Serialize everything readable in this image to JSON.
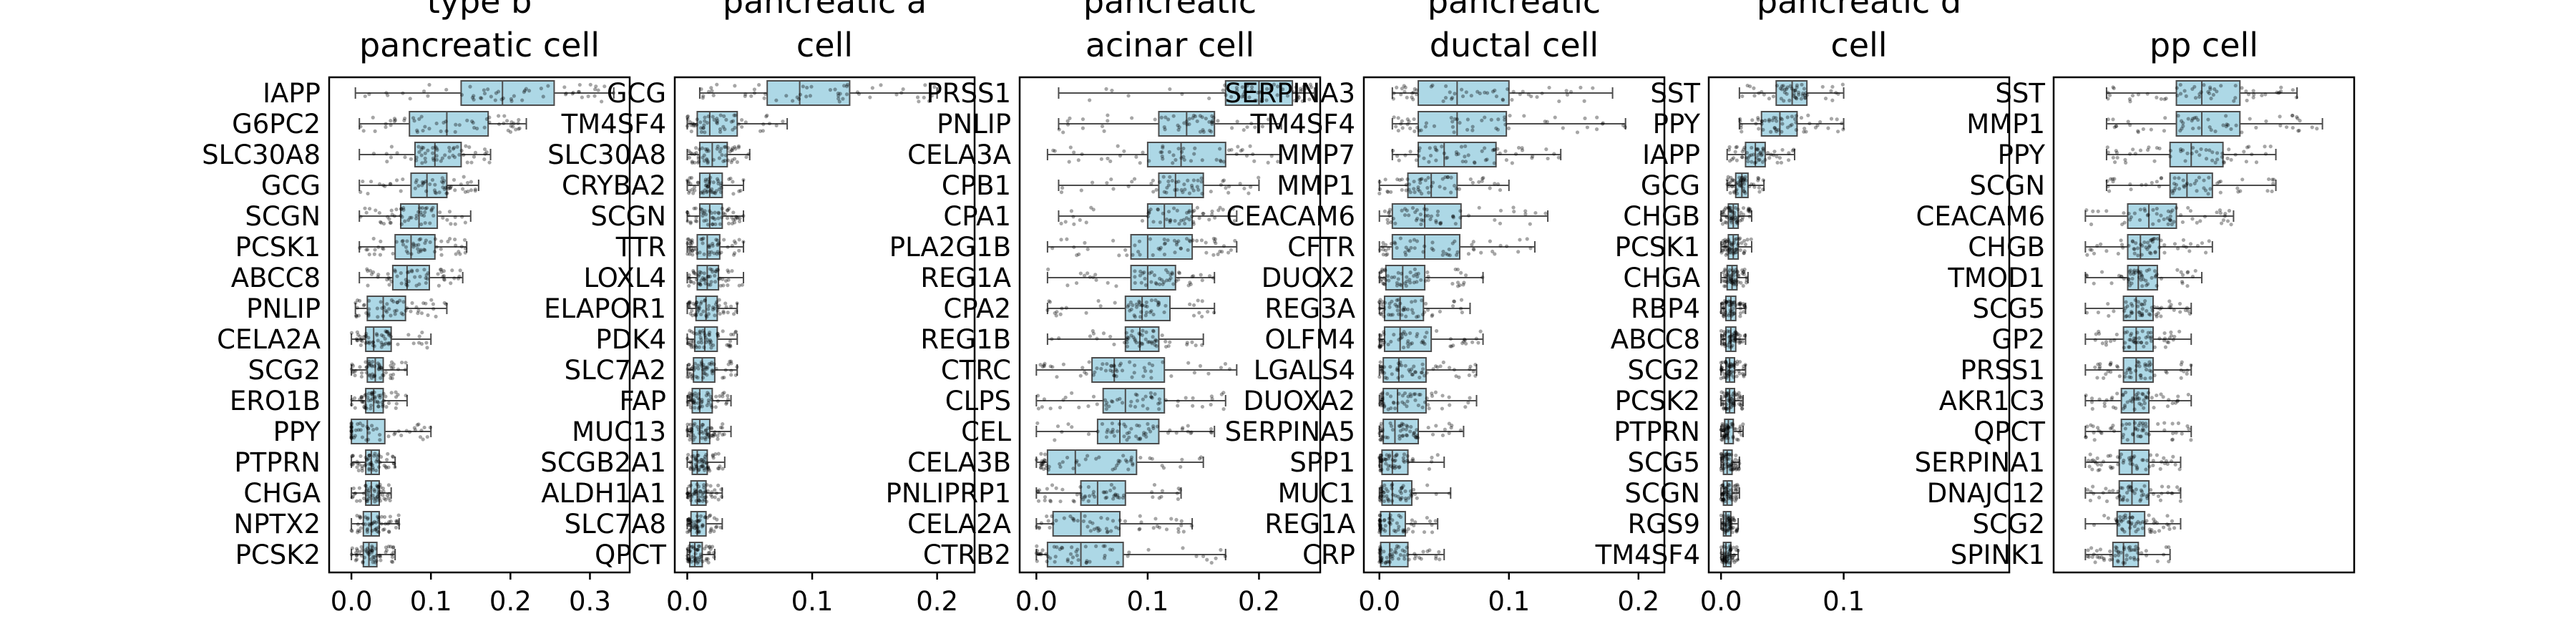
{
  "chart_data": [
    {
      "type": "box",
      "title": "type b\npancreatic cell",
      "xlim": [
        -0.028,
        0.35
      ],
      "xticks": [
        "0.0",
        "0.1",
        "0.2",
        "0.3"
      ],
      "xtick_values": [
        0.0,
        0.1,
        0.2,
        0.3
      ],
      "xtick_labels_visible": true,
      "grid": false,
      "genes": [
        "IAPP",
        "G6PC2",
        "SLC30A8",
        "GCG",
        "SCGN",
        "PCSK1",
        "ABCC8",
        "PNLIP",
        "CELA2A",
        "SCG2",
        "ERO1B",
        "PPY",
        "PTPRN",
        "CHGA",
        "NPTX2",
        "PCSK2"
      ],
      "boxes": [
        [
          0.005,
          0.138,
          0.19,
          0.255,
          0.33
        ],
        [
          0.01,
          0.073,
          0.12,
          0.172,
          0.22
        ],
        [
          0.01,
          0.08,
          0.105,
          0.138,
          0.175
        ],
        [
          0.01,
          0.075,
          0.095,
          0.12,
          0.16
        ],
        [
          0.01,
          0.062,
          0.085,
          0.108,
          0.15
        ],
        [
          0.01,
          0.055,
          0.075,
          0.105,
          0.145
        ],
        [
          0.01,
          0.052,
          0.07,
          0.098,
          0.14
        ],
        [
          0.005,
          0.02,
          0.04,
          0.068,
          0.12
        ],
        [
          0.0,
          0.018,
          0.028,
          0.05,
          0.1
        ],
        [
          0.0,
          0.02,
          0.03,
          0.04,
          0.07
        ],
        [
          0.0,
          0.018,
          0.028,
          0.04,
          0.07
        ],
        [
          0.0,
          0.0,
          0.02,
          0.042,
          0.1
        ],
        [
          0.0,
          0.018,
          0.025,
          0.035,
          0.055
        ],
        [
          0.0,
          0.018,
          0.025,
          0.035,
          0.05
        ],
        [
          0.0,
          0.015,
          0.025,
          0.035,
          0.06
        ],
        [
          0.0,
          0.015,
          0.022,
          0.032,
          0.055
        ]
      ]
    },
    {
      "type": "box",
      "title": "pancreatic a\ncell",
      "xlim": [
        -0.01,
        0.23
      ],
      "xticks": [
        "0.0",
        "0.1",
        "0.2"
      ],
      "xtick_values": [
        0.0,
        0.1,
        0.2
      ],
      "xtick_labels_visible": true,
      "grid": false,
      "genes": [
        "GCG",
        "TM4SF4",
        "SLC30A8",
        "CRYBA2",
        "SCGN",
        "TTR",
        "LOXL4",
        "ELAPOR1",
        "PDK4",
        "SLC7A2",
        "FAP",
        "MUC13",
        "SCGB2A1",
        "ALDH1A1",
        "SLC7A8",
        "QPCT"
      ],
      "boxes": [
        [
          0.01,
          0.064,
          0.09,
          0.13,
          0.2
        ],
        [
          0.0,
          0.008,
          0.018,
          0.04,
          0.08
        ],
        [
          0.0,
          0.01,
          0.02,
          0.032,
          0.05
        ],
        [
          0.0,
          0.01,
          0.018,
          0.028,
          0.045
        ],
        [
          0.0,
          0.01,
          0.018,
          0.028,
          0.045
        ],
        [
          0.0,
          0.008,
          0.016,
          0.026,
          0.045
        ],
        [
          0.0,
          0.008,
          0.016,
          0.025,
          0.045
        ],
        [
          0.0,
          0.007,
          0.015,
          0.024,
          0.04
        ],
        [
          0.0,
          0.006,
          0.014,
          0.024,
          0.04
        ],
        [
          0.0,
          0.005,
          0.012,
          0.022,
          0.04
        ],
        [
          0.0,
          0.004,
          0.01,
          0.02,
          0.035
        ],
        [
          0.0,
          0.004,
          0.01,
          0.018,
          0.035
        ],
        [
          0.0,
          0.004,
          0.008,
          0.016,
          0.03
        ],
        [
          0.0,
          0.003,
          0.008,
          0.015,
          0.028
        ],
        [
          0.0,
          0.003,
          0.008,
          0.015,
          0.028
        ],
        [
          0.0,
          0.002,
          0.006,
          0.012,
          0.022
        ]
      ]
    },
    {
      "type": "box",
      "title": "pancreatic\nacinar cell",
      "xlim": [
        -0.015,
        0.255
      ],
      "xticks": [
        "0.0",
        "0.1",
        "0.2"
      ],
      "xtick_values": [
        0.0,
        0.1,
        0.2
      ],
      "xtick_labels_visible": true,
      "grid": false,
      "genes": [
        "PRSS1",
        "PNLIP",
        "CELA3A",
        "CPB1",
        "CPA1",
        "PLA2G1B",
        "REG1A",
        "CPA2",
        "REG1B",
        "CTRC",
        "CLPS",
        "CEL",
        "CELA3B",
        "PNLIPRP1",
        "CELA2A",
        "CTRB2"
      ],
      "boxes": [
        [
          0.02,
          0.17,
          0.2,
          0.23,
          0.25
        ],
        [
          0.02,
          0.11,
          0.135,
          0.16,
          0.22
        ],
        [
          0.01,
          0.1,
          0.13,
          0.17,
          0.22
        ],
        [
          0.02,
          0.11,
          0.125,
          0.15,
          0.2
        ],
        [
          0.02,
          0.1,
          0.115,
          0.14,
          0.18
        ],
        [
          0.01,
          0.085,
          0.1,
          0.14,
          0.18
        ],
        [
          0.01,
          0.085,
          0.1,
          0.125,
          0.16
        ],
        [
          0.01,
          0.08,
          0.095,
          0.12,
          0.16
        ],
        [
          0.01,
          0.08,
          0.093,
          0.11,
          0.15
        ],
        [
          0.0,
          0.05,
          0.07,
          0.115,
          0.18
        ],
        [
          0.0,
          0.06,
          0.08,
          0.115,
          0.17
        ],
        [
          0.0,
          0.055,
          0.075,
          0.11,
          0.16
        ],
        [
          0.0,
          0.01,
          0.035,
          0.09,
          0.15
        ],
        [
          0.0,
          0.04,
          0.055,
          0.08,
          0.13
        ],
        [
          0.0,
          0.015,
          0.04,
          0.075,
          0.14
        ],
        [
          0.0,
          0.01,
          0.04,
          0.078,
          0.17
        ]
      ]
    },
    {
      "type": "box",
      "title": "pancreatic\nductal cell",
      "xlim": [
        -0.012,
        0.22
      ],
      "xticks": [
        "0.0",
        "0.1",
        "0.2"
      ],
      "xtick_values": [
        0.0,
        0.1,
        0.2
      ],
      "xtick_labels_visible": true,
      "grid": false,
      "genes": [
        "SERPINA3",
        "TM4SF4",
        "MMP7",
        "MMP1",
        "CEACAM6",
        "CFTR",
        "DUOX2",
        "REG3A",
        "OLFM4",
        "LGALS4",
        "DUOXA2",
        "SERPINA5",
        "SPP1",
        "MUC1",
        "REG1A",
        "CRP"
      ],
      "boxes": [
        [
          0.01,
          0.03,
          0.06,
          0.1,
          0.18
        ],
        [
          0.01,
          0.03,
          0.06,
          0.098,
          0.19
        ],
        [
          0.01,
          0.03,
          0.05,
          0.09,
          0.14
        ],
        [
          0.0,
          0.022,
          0.04,
          0.06,
          0.1
        ],
        [
          0.0,
          0.01,
          0.035,
          0.063,
          0.13
        ],
        [
          0.0,
          0.01,
          0.035,
          0.062,
          0.12
        ],
        [
          0.0,
          0.005,
          0.018,
          0.035,
          0.08
        ],
        [
          0.0,
          0.004,
          0.016,
          0.034,
          0.07
        ],
        [
          0.0,
          0.004,
          0.016,
          0.04,
          0.08
        ],
        [
          0.0,
          0.003,
          0.015,
          0.036,
          0.075
        ],
        [
          0.0,
          0.003,
          0.014,
          0.036,
          0.075
        ],
        [
          0.0,
          0.003,
          0.012,
          0.03,
          0.065
        ],
        [
          0.0,
          0.002,
          0.01,
          0.022,
          0.05
        ],
        [
          0.0,
          0.002,
          0.01,
          0.025,
          0.055
        ],
        [
          0.0,
          0.001,
          0.008,
          0.02,
          0.045
        ],
        [
          0.0,
          0.001,
          0.008,
          0.022,
          0.05
        ]
      ]
    },
    {
      "type": "box",
      "title": "pancreatic d\ncell",
      "xlim": [
        -0.01,
        0.235
      ],
      "xticks": [
        "0.0",
        "0.1"
      ],
      "xtick_values": [
        0.0,
        0.1
      ],
      "xtick_labels_visible": true,
      "grid": false,
      "genes": [
        "SST",
        "PPY",
        "IAPP",
        "GCG",
        "CHGB",
        "PCSK1",
        "CHGA",
        "RBP4",
        "ABCC8",
        "SCG2",
        "PCSK2",
        "PTPRN",
        "SCG5",
        "SCGN",
        "RGS9",
        "TM4SF4"
      ],
      "boxes": [
        [
          0.015,
          0.045,
          0.058,
          0.07,
          0.1
        ],
        [
          0.015,
          0.033,
          0.048,
          0.062,
          0.1
        ],
        [
          0.005,
          0.02,
          0.028,
          0.036,
          0.06
        ],
        [
          0.005,
          0.012,
          0.017,
          0.022,
          0.035
        ],
        [
          0.0,
          0.006,
          0.01,
          0.014,
          0.025
        ],
        [
          0.0,
          0.006,
          0.01,
          0.014,
          0.025
        ],
        [
          0.0,
          0.005,
          0.009,
          0.013,
          0.022
        ],
        [
          0.0,
          0.004,
          0.008,
          0.012,
          0.02
        ],
        [
          0.0,
          0.004,
          0.008,
          0.012,
          0.02
        ],
        [
          0.0,
          0.004,
          0.007,
          0.011,
          0.02
        ],
        [
          0.0,
          0.004,
          0.007,
          0.011,
          0.018
        ],
        [
          0.0,
          0.003,
          0.006,
          0.01,
          0.018
        ],
        [
          0.0,
          0.002,
          0.005,
          0.009,
          0.015
        ],
        [
          0.0,
          0.002,
          0.005,
          0.009,
          0.015
        ],
        [
          0.0,
          0.002,
          0.004,
          0.008,
          0.014
        ],
        [
          0.0,
          0.002,
          0.004,
          0.008,
          0.014
        ]
      ]
    },
    {
      "type": "box",
      "title": "pp cell",
      "xlim": [
        -0.015,
        0.127
      ],
      "xticks": [],
      "xtick_values": [],
      "xtick_labels_visible": false,
      "grid": false,
      "genes": [
        "SST",
        "MMP1",
        "PPY",
        "SCGN",
        "CEACAM6",
        "CHGB",
        "TMOD1",
        "SCG5",
        "GP2",
        "PRSS1",
        "AKR1C3",
        "QPCT",
        "SERPINA1",
        "DNAJC12",
        "SCG2",
        "SPINK1"
      ],
      "boxes": [
        [
          0.01,
          0.043,
          0.055,
          0.073,
          0.1
        ],
        [
          0.01,
          0.043,
          0.055,
          0.073,
          0.112
        ],
        [
          0.01,
          0.04,
          0.05,
          0.065,
          0.09
        ],
        [
          0.01,
          0.04,
          0.048,
          0.06,
          0.09
        ],
        [
          0.0,
          0.02,
          0.03,
          0.043,
          0.07
        ],
        [
          0.0,
          0.02,
          0.026,
          0.035,
          0.06
        ],
        [
          0.0,
          0.02,
          0.025,
          0.034,
          0.055
        ],
        [
          0.0,
          0.018,
          0.024,
          0.032,
          0.05
        ],
        [
          0.0,
          0.018,
          0.024,
          0.032,
          0.05
        ],
        [
          0.0,
          0.018,
          0.024,
          0.032,
          0.05
        ],
        [
          0.0,
          0.017,
          0.023,
          0.03,
          0.05
        ],
        [
          0.0,
          0.017,
          0.023,
          0.03,
          0.05
        ],
        [
          0.0,
          0.016,
          0.022,
          0.03,
          0.045
        ],
        [
          0.0,
          0.016,
          0.022,
          0.03,
          0.045
        ],
        [
          0.0,
          0.015,
          0.021,
          0.028,
          0.045
        ],
        [
          0.0,
          0.013,
          0.018,
          0.025,
          0.04
        ]
      ]
    }
  ],
  "colors": {
    "box_fill": "#add8e6",
    "box_edge": "#4d4d4d",
    "points": "#000000",
    "axes": "#000000"
  }
}
